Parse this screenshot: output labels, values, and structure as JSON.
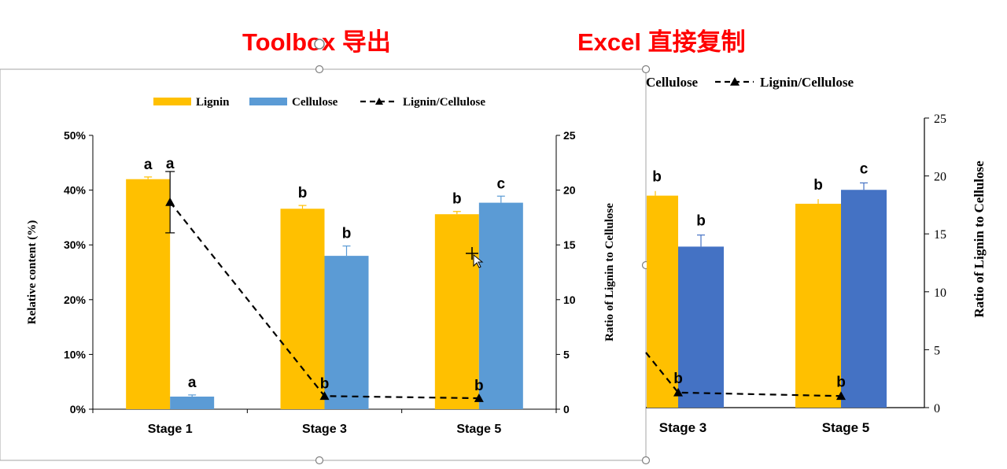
{
  "headers": {
    "left": "Toolbox 导出",
    "right": "Excel 直接复制"
  },
  "colors": {
    "lignin": "#ffc000",
    "cellulose_left": "#5b9bd5",
    "cellulose_right": "#4472c4",
    "ratio_line": "#000000",
    "header": "#ff0000",
    "selection_frame": "#a6a6a6"
  },
  "chart_data": [
    {
      "type": "bar",
      "panel": "left",
      "categories": [
        "Stage 1",
        "Stage 3",
        "Stage 5"
      ],
      "series": [
        {
          "name": "Lignin",
          "axis": "left",
          "values": [
            0.42,
            0.366,
            0.356
          ],
          "errors": [
            0.004,
            0.006,
            0.005
          ],
          "labels": [
            "a",
            "b",
            "b"
          ]
        },
        {
          "name": "Cellulose",
          "axis": "left",
          "values": [
            0.023,
            0.28,
            0.377
          ],
          "errors": [
            0.003,
            0.018,
            0.012
          ],
          "labels": [
            "a",
            "b",
            "c"
          ]
        },
        {
          "name": "Lignin/Cellulose",
          "type": "line",
          "axis": "right",
          "values": [
            18.9,
            1.2,
            1.0
          ],
          "errors": [
            2.8,
            0,
            0
          ],
          "labels": [
            "a",
            "b",
            "b"
          ]
        }
      ],
      "ylabel": "Relative content (%)",
      "ylabel_right": "Ratio of Lignin to Cellulose",
      "ylim": [
        0,
        0.5
      ],
      "yticks": [
        "0%",
        "10%",
        "20%",
        "30%",
        "40%",
        "50%"
      ],
      "ylim_right": [
        0,
        25
      ],
      "yticks_right": [
        "0",
        "5",
        "10",
        "15",
        "20",
        "25"
      ],
      "legend": "top",
      "grid": false
    },
    {
      "type": "bar",
      "panel": "right",
      "categories": [
        "Stage 3",
        "Stage 5"
      ],
      "series": [
        {
          "name": "Lignin",
          "axis": "left",
          "values": [
            18.3,
            17.6
          ],
          "errors": [
            0.4,
            0.4
          ],
          "labels": [
            "b",
            "b"
          ]
        },
        {
          "name": "Cellulose",
          "axis": "left",
          "values": [
            13.9,
            18.8
          ],
          "errors": [
            1.0,
            0.6
          ],
          "labels": [
            "b",
            "c"
          ]
        },
        {
          "name": "Lignin/Cellulose",
          "type": "line",
          "axis": "right",
          "values": [
            1.3,
            1.0
          ],
          "errors": [
            0,
            0
          ],
          "labels": [
            "b",
            "b"
          ]
        }
      ],
      "legend_entries": [
        "Cellulose",
        "Lignin/Cellulose"
      ],
      "ylabel_right": "Ratio of Lignin to Cellulose",
      "ylim_right": [
        0,
        25
      ],
      "yticks_right": [
        "0",
        "5",
        "10",
        "15",
        "20",
        "25"
      ],
      "legend": "top",
      "grid": false
    }
  ]
}
